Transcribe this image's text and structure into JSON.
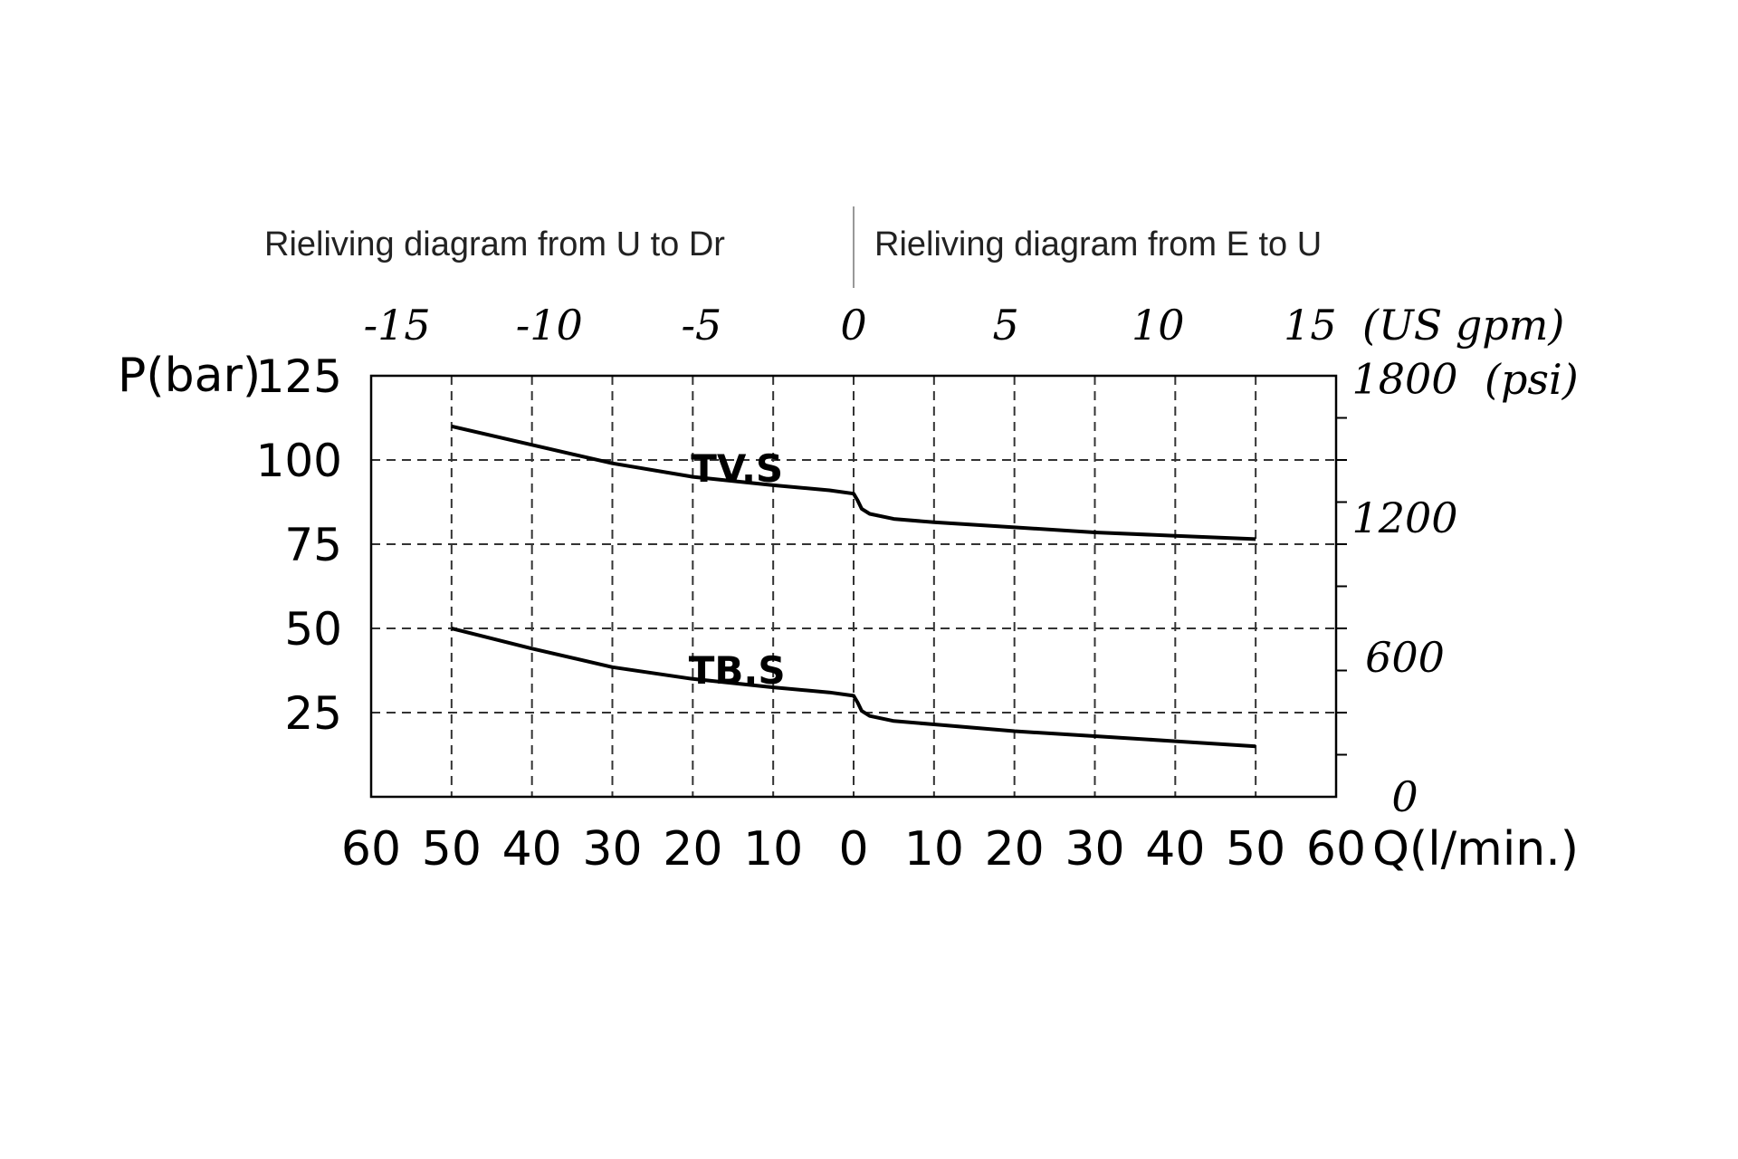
{
  "chart_data": {
    "type": "line",
    "captions": {
      "left": "Rieliving diagram from U to Dr",
      "right": "Rieliving diagram from E to U"
    },
    "ylabel": "P(bar)",
    "xlabel": "Q(l/min.)",
    "top_axis_unit": "(US gpm)",
    "right_axis_unit": "(psi)",
    "ylim": [
      0,
      125
    ],
    "xlim": [
      -60,
      60
    ],
    "y_ticks": [
      "125",
      "100",
      "75",
      "50",
      "25"
    ],
    "y_tick_values": [
      125,
      100,
      75,
      50,
      25
    ],
    "x_tick_labels": [
      "60",
      "50",
      "40",
      "30",
      "20",
      "10",
      "0",
      "10",
      "20",
      "30",
      "40",
      "50",
      "60"
    ],
    "x_tick_values": [
      -60,
      -50,
      -40,
      -30,
      -20,
      -10,
      0,
      10,
      20,
      30,
      40,
      50,
      60
    ],
    "top_tick_labels": [
      "-15",
      "-10",
      "-5",
      "0",
      "5",
      "10",
      "15"
    ],
    "top_tick_values": [
      -15,
      -10,
      -5,
      0,
      5,
      10,
      15
    ],
    "right_tick_labels": [
      "1800",
      "1200",
      "600",
      "0"
    ],
    "right_tick_values": [
      1800,
      1200,
      600,
      0
    ],
    "grid": true,
    "series": [
      {
        "name": "TV.S",
        "x": [
          -50,
          -40,
          -30,
          -20,
          -10,
          -3,
          0,
          0.5,
          1,
          2,
          5,
          10,
          20,
          30,
          40,
          50
        ],
        "y": [
          110,
          104.5,
          99,
          95,
          92.5,
          91,
          90,
          88,
          85.5,
          84,
          82.5,
          81.5,
          80,
          78.5,
          77.5,
          76.5
        ]
      },
      {
        "name": "TB.S",
        "x": [
          -50,
          -40,
          -30,
          -20,
          -10,
          -3,
          0,
          0.5,
          1,
          2,
          5,
          10,
          20,
          30,
          40,
          50
        ],
        "y": [
          50,
          44,
          38.5,
          35,
          32.5,
          31,
          30,
          28,
          25.5,
          24,
          22.5,
          21.5,
          19.5,
          18,
          16.5,
          15
        ]
      }
    ]
  }
}
